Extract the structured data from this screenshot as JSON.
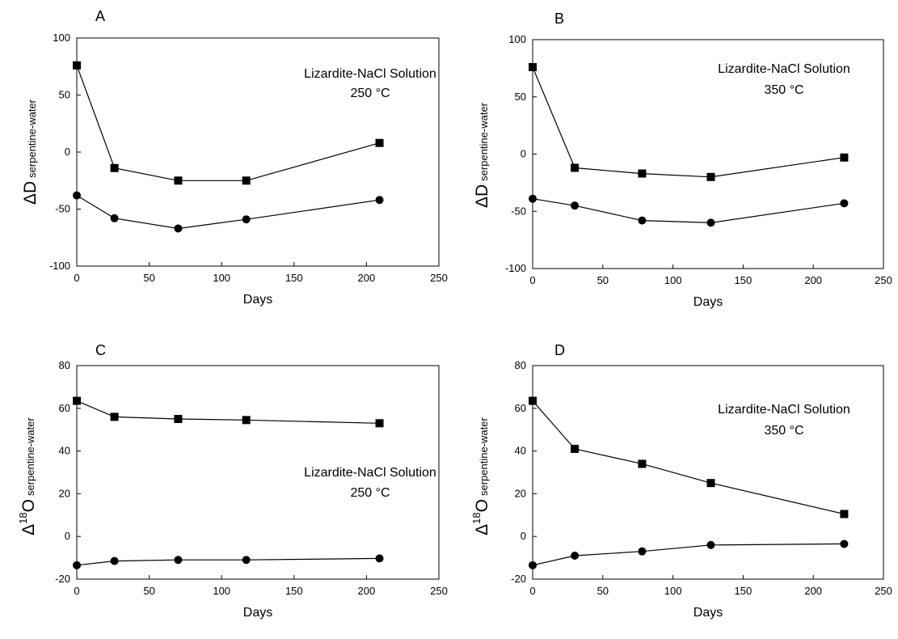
{
  "chart_data": [
    {
      "type": "line",
      "panel_label": "A",
      "annotation_lines": [
        "Lizardite-NaCl Solution",
        "250 °C"
      ],
      "xlabel": "Days",
      "ylabel": {
        "symbol": "ΔD",
        "superscript": "",
        "element": "",
        "subscript": "serpentine-water"
      },
      "xlim": [
        0,
        250
      ],
      "ylim": [
        -100,
        100
      ],
      "xticks": [
        0,
        50,
        100,
        150,
        200,
        250
      ],
      "yticks": [
        -100,
        -50,
        0,
        50,
        100
      ],
      "series": [
        {
          "marker": "square",
          "x": [
            0,
            26,
            70,
            117,
            209
          ],
          "y": [
            76,
            -14,
            -25,
            -25,
            8
          ]
        },
        {
          "marker": "circle",
          "x": [
            0,
            26,
            70,
            117,
            209
          ],
          "y": [
            -38,
            -58,
            -67,
            -59,
            -42
          ]
        }
      ]
    },
    {
      "type": "line",
      "panel_label": "B",
      "annotation_lines": [
        "Lizardite-NaCl Solution",
        "350 °C"
      ],
      "xlabel": "Days",
      "ylabel": {
        "symbol": "ΔD",
        "superscript": "",
        "element": "",
        "subscript": "serpentine-water"
      },
      "xlim": [
        0,
        250
      ],
      "ylim": [
        -100,
        100
      ],
      "xticks": [
        0,
        50,
        100,
        150,
        200,
        250
      ],
      "yticks": [
        -100,
        -50,
        0,
        50,
        100
      ],
      "series": [
        {
          "marker": "square",
          "x": [
            0,
            30,
            78,
            127,
            222
          ],
          "y": [
            76,
            -12,
            -17,
            -20,
            -3
          ]
        },
        {
          "marker": "circle",
          "x": [
            0,
            30,
            78,
            127,
            222
          ],
          "y": [
            -39,
            -45,
            -58,
            -60,
            -43
          ]
        }
      ]
    },
    {
      "type": "line",
      "panel_label": "C",
      "annotation_lines": [
        "Lizardite-NaCl Solution",
        "250 °C"
      ],
      "xlabel": "Days",
      "ylabel": {
        "symbol": "Δ",
        "superscript": "18",
        "element": "O",
        "subscript": "serpentine-water"
      },
      "xlim": [
        0,
        250
      ],
      "ylim": [
        -20,
        80
      ],
      "xticks": [
        0,
        50,
        100,
        150,
        200,
        250
      ],
      "yticks": [
        -20,
        0,
        20,
        40,
        60,
        80
      ],
      "series": [
        {
          "marker": "square",
          "x": [
            0,
            26,
            70,
            117,
            209
          ],
          "y": [
            63.5,
            56,
            55,
            54.5,
            53
          ]
        },
        {
          "marker": "circle",
          "x": [
            0,
            26,
            70,
            117,
            209
          ],
          "y": [
            -13.5,
            -11.5,
            -11,
            -11,
            -10.3
          ]
        }
      ]
    },
    {
      "type": "line",
      "panel_label": "D",
      "annotation_lines": [
        "Lizardite-NaCl Solution",
        "350 °C"
      ],
      "xlabel": "Days",
      "ylabel": {
        "symbol": "Δ",
        "superscript": "18",
        "element": "O",
        "subscript": "serpentine-water"
      },
      "xlim": [
        0,
        250
      ],
      "ylim": [
        -20,
        80
      ],
      "xticks": [
        0,
        50,
        100,
        150,
        200,
        250
      ],
      "yticks": [
        -20,
        0,
        20,
        40,
        60,
        80
      ],
      "series": [
        {
          "marker": "square",
          "x": [
            0,
            30,
            78,
            127,
            222
          ],
          "y": [
            63.5,
            41,
            34,
            25,
            10.5
          ]
        },
        {
          "marker": "circle",
          "x": [
            0,
            30,
            78,
            127,
            222
          ],
          "y": [
            -13.5,
            -9,
            -7,
            -4,
            -3.5
          ]
        }
      ]
    }
  ]
}
